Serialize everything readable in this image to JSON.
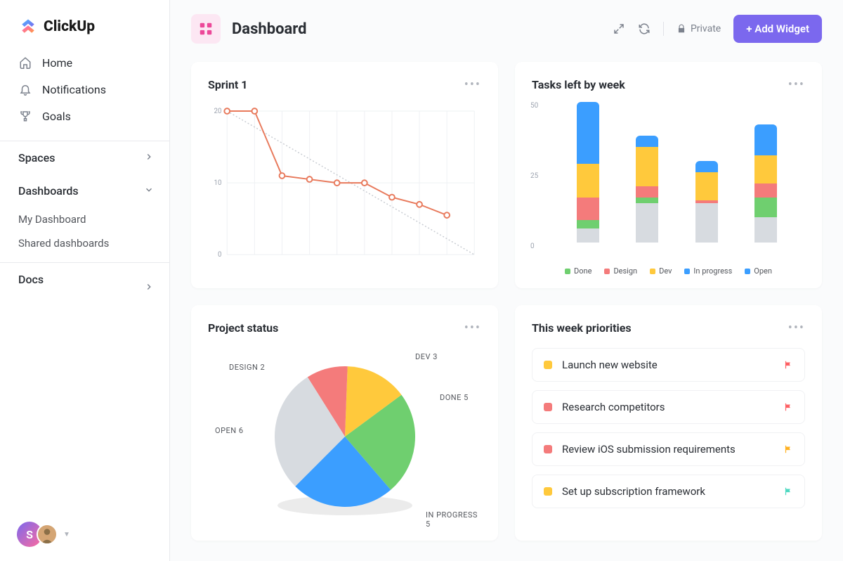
{
  "logo_text": "ClickUp",
  "nav": {
    "home": "Home",
    "notifications": "Notifications",
    "goals": "Goals"
  },
  "sections": {
    "spaces": "Spaces",
    "dashboards": "Dashboards",
    "docs": "Docs"
  },
  "dash_sub": {
    "my": "My Dashboard",
    "shared": "Shared dashboards"
  },
  "header": {
    "title": "Dashboard",
    "private": "Private",
    "add_widget": "+ Add Widget"
  },
  "colors": {
    "done": "#6fcf6f",
    "design": "#f47b7b",
    "dev": "#ffc93c",
    "in_progress": "#3b9eff",
    "open": "#d7dbe0",
    "accent": "#7b68ee",
    "flag_red": "#fd5f63",
    "flag_orange": "#ffb01f",
    "flag_teal": "#4ed8c1",
    "line_stroke": "#e8795b"
  },
  "sprint": {
    "title": "Sprint 1",
    "y_ticks": [
      "20",
      "10",
      "0"
    ],
    "points_x": [
      0,
      1,
      2,
      3,
      4,
      5,
      6,
      7,
      8
    ],
    "points_y": [
      20,
      20,
      11,
      10.5,
      10,
      10,
      8,
      7,
      5.5
    ],
    "ideal_start": 20,
    "ideal_end": 0,
    "x_count": 10,
    "y_max": 20
  },
  "tasks_week": {
    "title": "Tasks left by week",
    "y_ticks": [
      "50",
      "25",
      "0"
    ],
    "y_max": 50,
    "bars": [
      {
        "open": 5,
        "done": 3,
        "design": 8,
        "dev": 12,
        "in_progress": 22
      },
      {
        "open": 14,
        "done": 2,
        "design": 4,
        "dev": 14,
        "in_progress": 4
      },
      {
        "open": 14,
        "done": 0,
        "design": 1,
        "dev": 10,
        "in_progress": 4
      },
      {
        "open": 9,
        "done": 7,
        "design": 5,
        "dev": 10,
        "in_progress": 11
      }
    ],
    "legend": [
      {
        "key": "done",
        "label": "Done"
      },
      {
        "key": "design",
        "label": "Design"
      },
      {
        "key": "dev",
        "label": "Dev"
      },
      {
        "key": "in_progress",
        "label": "In progress"
      },
      {
        "key": "open",
        "label": "Open"
      }
    ]
  },
  "project_status": {
    "title": "Project status",
    "slices": [
      {
        "key": "in_progress",
        "label": "IN PROGRESS 5",
        "value": 5
      },
      {
        "key": "done",
        "label": "DONE 5",
        "value": 5
      },
      {
        "key": "dev",
        "label": "DEV 3",
        "value": 3
      },
      {
        "key": "design",
        "label": "DESIGN 2",
        "value": 2
      },
      {
        "key": "open",
        "label": "OPEN 6",
        "value": 6
      }
    ]
  },
  "priorities": {
    "title": "This week priorities",
    "items": [
      {
        "status": "dev",
        "label": "Launch new website",
        "flag": "flag_red"
      },
      {
        "status": "design",
        "label": "Research competitors",
        "flag": "flag_red"
      },
      {
        "status": "design",
        "label": "Review iOS submission requirements",
        "flag": "flag_orange"
      },
      {
        "status": "dev",
        "label": "Set up subscription framework",
        "flag": "flag_teal"
      }
    ]
  },
  "avatar_letter": "S"
}
